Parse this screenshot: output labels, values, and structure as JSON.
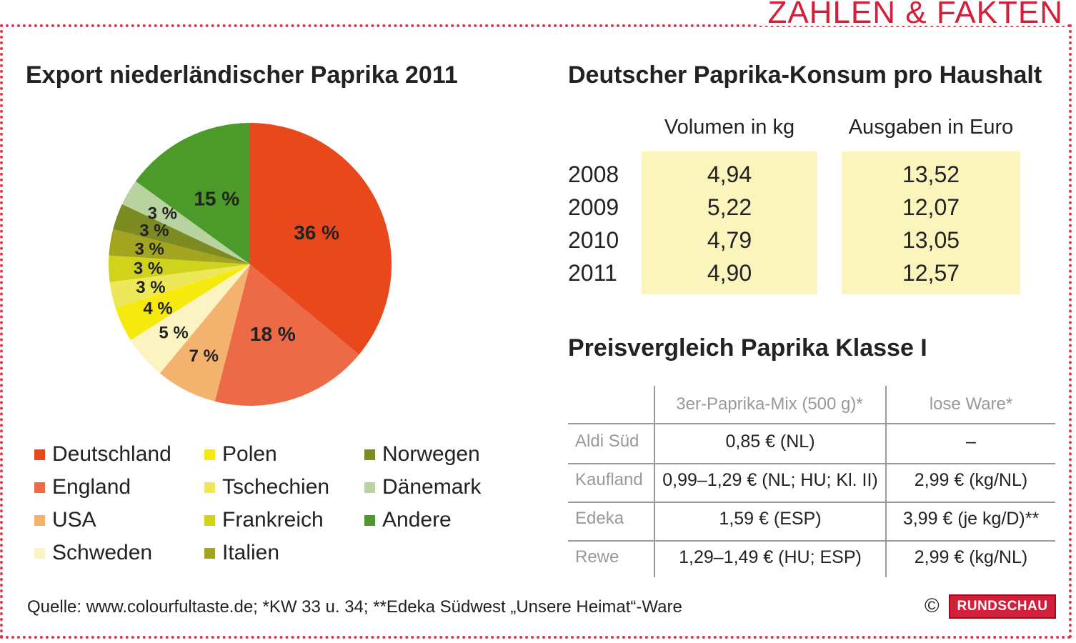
{
  "brand_title": "ZAHLEN & FAKTEN",
  "footer": {
    "source": "Quelle: www.colourfultaste.de; *KW 33 u. 34; **Edeka Südwest „Unsere Heimat“-Ware",
    "copyright": "©",
    "logo_text": "RUNDSCHAU"
  },
  "chart_data": [
    {
      "type": "pie",
      "title": "Export niederländischer Paprika 2011",
      "slices": [
        {
          "name": "Deutschland",
          "value": 36,
          "label": "36 %",
          "color": "#e8481c"
        },
        {
          "name": "England",
          "value": 18,
          "label": "18 %",
          "color": "#ec6b46"
        },
        {
          "name": "USA",
          "value": 7,
          "label": "7 %",
          "color": "#f4b26f"
        },
        {
          "name": "Schweden",
          "value": 5,
          "label": "5 %",
          "color": "#fbf4c2"
        },
        {
          "name": "Polen",
          "value": 4,
          "label": "4 %",
          "color": "#f5e90d"
        },
        {
          "name": "Tschechien",
          "value": 3,
          "label": "3 %",
          "color": "#ede85a"
        },
        {
          "name": "Frankreich",
          "value": 3,
          "label": "3 %",
          "color": "#cfd31c"
        },
        {
          "name": "Italien",
          "value": 3,
          "label": "3 %",
          "color": "#a3a51f"
        },
        {
          "name": "Norwegen",
          "value": 3,
          "label": "3 %",
          "color": "#7d8c22"
        },
        {
          "name": "Dänemark",
          "value": 3,
          "label": "3 %",
          "color": "#b9d3a0"
        },
        {
          "name": "Andere",
          "value": 15,
          "label": "15 %",
          "color": "#4c9a29"
        }
      ],
      "legend": {
        "placement": "bottom",
        "columns": [
          [
            "Deutschland",
            "England",
            "USA",
            "Schweden"
          ],
          [
            "Polen",
            "Tschechien",
            "Frankreich",
            "Italien"
          ],
          [
            "Norwegen",
            "Dänemark",
            "Andere"
          ]
        ]
      }
    },
    {
      "type": "table",
      "title": "Deutscher Paprika-Konsum pro Haushalt",
      "columns": [
        "Volumen in kg",
        "Ausgaben in Euro"
      ],
      "rows": [
        {
          "year": "2008",
          "volumen": "4,94",
          "ausgaben": "13,52"
        },
        {
          "year": "2009",
          "volumen": "5,22",
          "ausgaben": "12,07"
        },
        {
          "year": "2010",
          "volumen": "4,79",
          "ausgaben": "13,05"
        },
        {
          "year": "2011",
          "volumen": "4,90",
          "ausgaben": "12,57"
        }
      ],
      "highlight_color": "#fbf4bd"
    },
    {
      "type": "table",
      "title": "Preisvergleich Paprika Klasse I",
      "columns": [
        "3er-Paprika-Mix (500 g)*",
        "lose Ware*"
      ],
      "rows": [
        {
          "store": "Aldi Süd",
          "mix": "0,85 € (NL)",
          "lose": "–"
        },
        {
          "store": "Kaufland",
          "mix": "0,99–1,29 € (NL; HU; Kl. II)",
          "lose": "2,99 € (kg/NL)"
        },
        {
          "store": "Edeka",
          "mix": "1,59 € (ESP)",
          "lose": "3,99 € (je kg/D)**"
        },
        {
          "store": "Rewe",
          "mix": "1,29–1,49 € (HU; ESP)",
          "lose": "2,99 € (kg/NL)"
        }
      ]
    }
  ]
}
